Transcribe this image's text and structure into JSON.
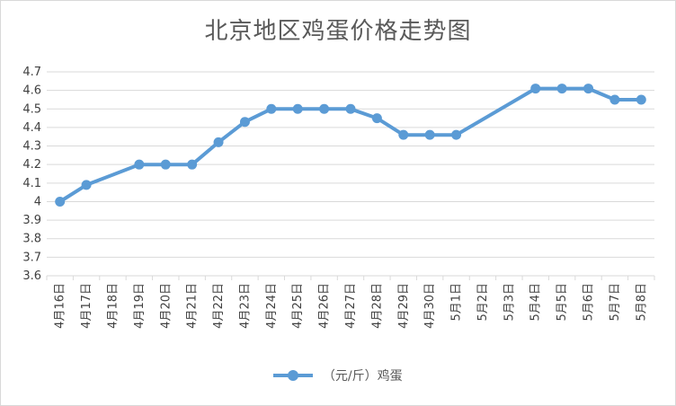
{
  "chart_data": {
    "type": "line",
    "title": "北京地区鸡蛋价格走势图",
    "categories": [
      "4月16日",
      "4月17日",
      "4月18日",
      "4月19日",
      "4月20日",
      "4月21日",
      "4月22日",
      "4月23日",
      "4月24日",
      "4月25日",
      "4月26日",
      "4月27日",
      "4月28日",
      "4月29日",
      "4月30日",
      "5月1日",
      "5月2日",
      "5月3日",
      "5月4日",
      "5月5日",
      "5月6日",
      "5月7日",
      "5月8日"
    ],
    "series": [
      {
        "name": "（元/斤）鸡蛋",
        "color": "#5b9bd5",
        "values": [
          4.0,
          4.09,
          null,
          4.2,
          4.2,
          4.2,
          4.32,
          4.43,
          4.5,
          4.5,
          4.5,
          4.5,
          4.45,
          4.36,
          4.36,
          4.36,
          null,
          null,
          4.61,
          4.61,
          4.61,
          4.55,
          4.55
        ]
      }
    ],
    "ylim": [
      3.6,
      4.7
    ],
    "yticks": [
      "3.6",
      "3.7",
      "3.8",
      "3.9",
      "4",
      "4.1",
      "4.2",
      "4.3",
      "4.4",
      "4.5",
      "4.6",
      "4.7"
    ],
    "grid": true,
    "legend": "bottom",
    "gridColor": "#d9d9d9",
    "tickColor": "#404040"
  }
}
